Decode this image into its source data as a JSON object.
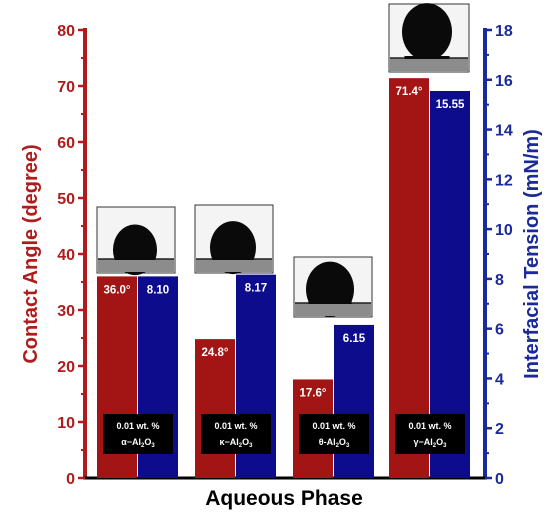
{
  "chart_data": {
    "type": "bar",
    "xlabel": "Aqueous Phase",
    "ylabel_left": "Contact Angle (degree)",
    "ylabel_right": "Interfacial Tension (mN/m)",
    "ylim_left": [
      0,
      80
    ],
    "ylim_right": [
      0,
      18
    ],
    "yticks_left": [
      "0",
      "10",
      "20",
      "30",
      "40",
      "50",
      "60",
      "70",
      "80"
    ],
    "yticks_right": [
      "0",
      "2",
      "4",
      "6",
      "8",
      "10",
      "12",
      "14",
      "16",
      "18"
    ],
    "grid": false,
    "legend": "none",
    "colors": {
      "contact_angle": "#a31515",
      "interfacial_tension": "#0c0c8c",
      "left_axis": "#b01c1c",
      "right_axis": "#1a2a9a"
    },
    "groups": [
      {
        "concentration": "0.01 wt. %",
        "phase_prefix": "α−Al",
        "sub1": "2",
        "mid": "O",
        "sub2": "3",
        "contact_angle": 36.0,
        "contact_angle_label": "36.0°",
        "interfacial_tension": 8.1,
        "interfacial_tension_label": "8.10"
      },
      {
        "concentration": "0.01 wt. %",
        "phase_prefix": "κ−Al",
        "sub1": "2",
        "mid": "O",
        "sub2": "3",
        "contact_angle": 24.8,
        "contact_angle_label": "24.8°",
        "interfacial_tension": 8.17,
        "interfacial_tension_label": "8.17"
      },
      {
        "concentration": "0.01 wt. %",
        "phase_prefix": "θ-Al",
        "sub1": "2",
        "mid": "O",
        "sub2": "3",
        "contact_angle": 17.6,
        "contact_angle_label": "17.6°",
        "interfacial_tension": 6.15,
        "interfacial_tension_label": "6.15"
      },
      {
        "concentration": "0.01 wt. %",
        "phase_prefix": "γ−Al",
        "sub1": "2",
        "mid": "O",
        "sub2": "3",
        "contact_angle": 71.4,
        "contact_angle_label": "71.4°",
        "interfacial_tension": 15.55,
        "interfacial_tension_label": "15.55"
      }
    ]
  }
}
